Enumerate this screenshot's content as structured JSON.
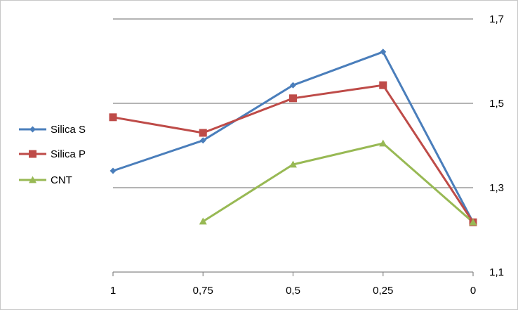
{
  "chart_data": {
    "type": "line",
    "title": "",
    "xlabel": "",
    "ylabel": "",
    "categories": [
      "1",
      "0,75",
      "0,5",
      "0,25",
      "0"
    ],
    "x": [
      1,
      0.75,
      0.5,
      0.25,
      0
    ],
    "ylim": [
      1.1,
      1.7
    ],
    "yticks": [
      1.1,
      1.3,
      1.5,
      1.7
    ],
    "ytick_labels": [
      "1,1",
      "1,3",
      "1,5",
      "1,7"
    ],
    "y_axis_side": "right",
    "grid": "horizontal",
    "legend": "left",
    "series": [
      {
        "name": "Silica S",
        "color": "#4a7ebb",
        "marker": "diamond",
        "values": [
          1.34,
          1.412,
          1.543,
          1.622,
          1.218
        ]
      },
      {
        "name": "Silica P",
        "color": "#be4b48",
        "marker": "square",
        "values": [
          1.467,
          1.43,
          1.512,
          1.543,
          1.218
        ]
      },
      {
        "name": "CNT",
        "color": "#98b954",
        "marker": "triangle",
        "values": [
          null,
          1.22,
          1.355,
          1.405,
          1.218
        ]
      }
    ]
  }
}
